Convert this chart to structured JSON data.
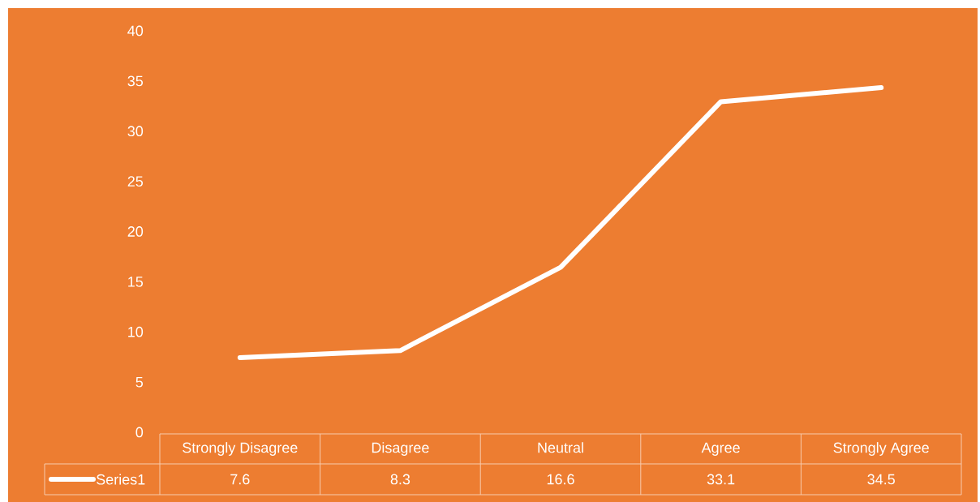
{
  "chart_data": {
    "type": "line",
    "categories": [
      "Strongly Disagree",
      "Disagree",
      "Neutral",
      "Agree",
      "Strongly Agree"
    ],
    "series": [
      {
        "name": "Series1",
        "color": "#ffffff",
        "values": [
          7.6,
          8.3,
          16.6,
          33.1,
          34.5
        ]
      }
    ],
    "ylim": [
      0,
      40
    ],
    "yticks": [
      0,
      5,
      10,
      15,
      20,
      25,
      30,
      35,
      40
    ],
    "data_labels": true,
    "legend": "bottom",
    "line_style": "solid"
  }
}
